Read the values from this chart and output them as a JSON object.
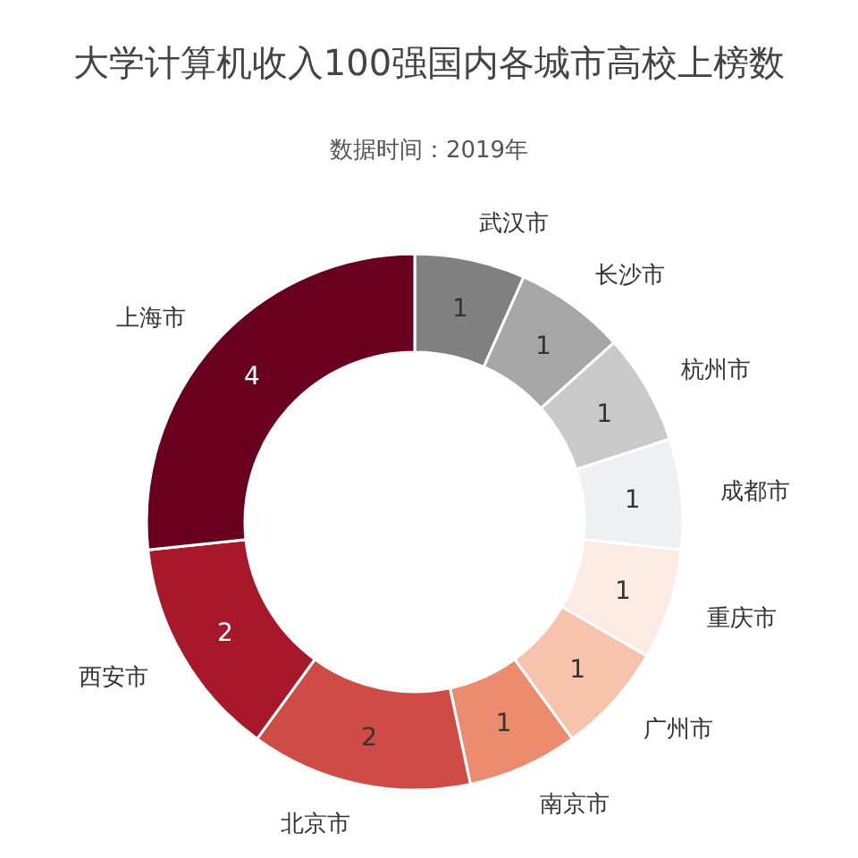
{
  "chart_data": {
    "type": "donut",
    "title": "大学计算机收入100强国内各城市高校上榜数",
    "subtitle": "数据时间：2019年",
    "categories": [
      "武汉市",
      "长沙市",
      "杭州市",
      "成都市",
      "重庆市",
      "广州市",
      "南京市",
      "北京市",
      "西安市",
      "上海市"
    ],
    "values": [
      1,
      1,
      1,
      1,
      1,
      1,
      1,
      2,
      2,
      4
    ],
    "colors": [
      "#808080",
      "#a6a6a6",
      "#c9c9c9",
      "#eef0f2",
      "#fcebe3",
      "#f8c3ac",
      "#ec8c6e",
      "#cf4b45",
      "#a8182a",
      "#6a0020"
    ],
    "data_labels": true,
    "legend": false
  }
}
